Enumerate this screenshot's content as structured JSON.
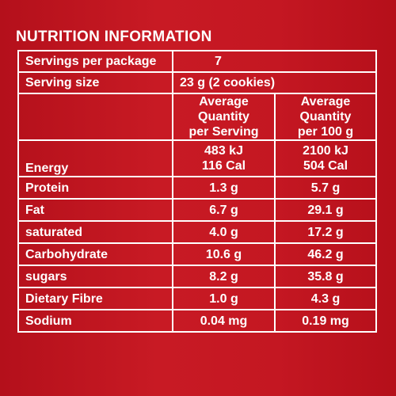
{
  "title": "NUTRITION INFORMATION",
  "servings_per_package": {
    "label": "Servings per package",
    "value": "7"
  },
  "serving_size": {
    "label": "Serving size",
    "value": "23 g (2 cookies)"
  },
  "headers": {
    "per_serving": [
      "Average",
      "Quantity",
      "per Serving"
    ],
    "per_100g": [
      "Average",
      "Quantity",
      "per 100 g"
    ]
  },
  "energy": {
    "label": "Energy",
    "per_serving": [
      "483 kJ",
      "116 Cal"
    ],
    "per_100g": [
      "2100 kJ",
      "504 Cal"
    ]
  },
  "rows": [
    {
      "label": "Protein",
      "per_serving": "1.3 g",
      "per_100g": "5.7 g"
    },
    {
      "label": "Fat",
      "per_serving": "6.7 g",
      "per_100g": "29.1 g"
    },
    {
      "label": "saturated",
      "per_serving": "4.0 g",
      "per_100g": "17.2 g"
    },
    {
      "label": "Carbohydrate",
      "per_serving": "10.6 g",
      "per_100g": "46.2 g"
    },
    {
      "label": "sugars",
      "per_serving": "8.2 g",
      "per_100g": "35.8 g"
    },
    {
      "label": "Dietary Fibre",
      "per_serving": "1.0 g",
      "per_100g": "4.3 g"
    },
    {
      "label": "Sodium",
      "per_serving": "0.04 mg",
      "per_100g": "0.19 mg"
    }
  ],
  "colors": {
    "background": "#c0141e",
    "text": "#ffffff",
    "border": "#ffffff"
  }
}
